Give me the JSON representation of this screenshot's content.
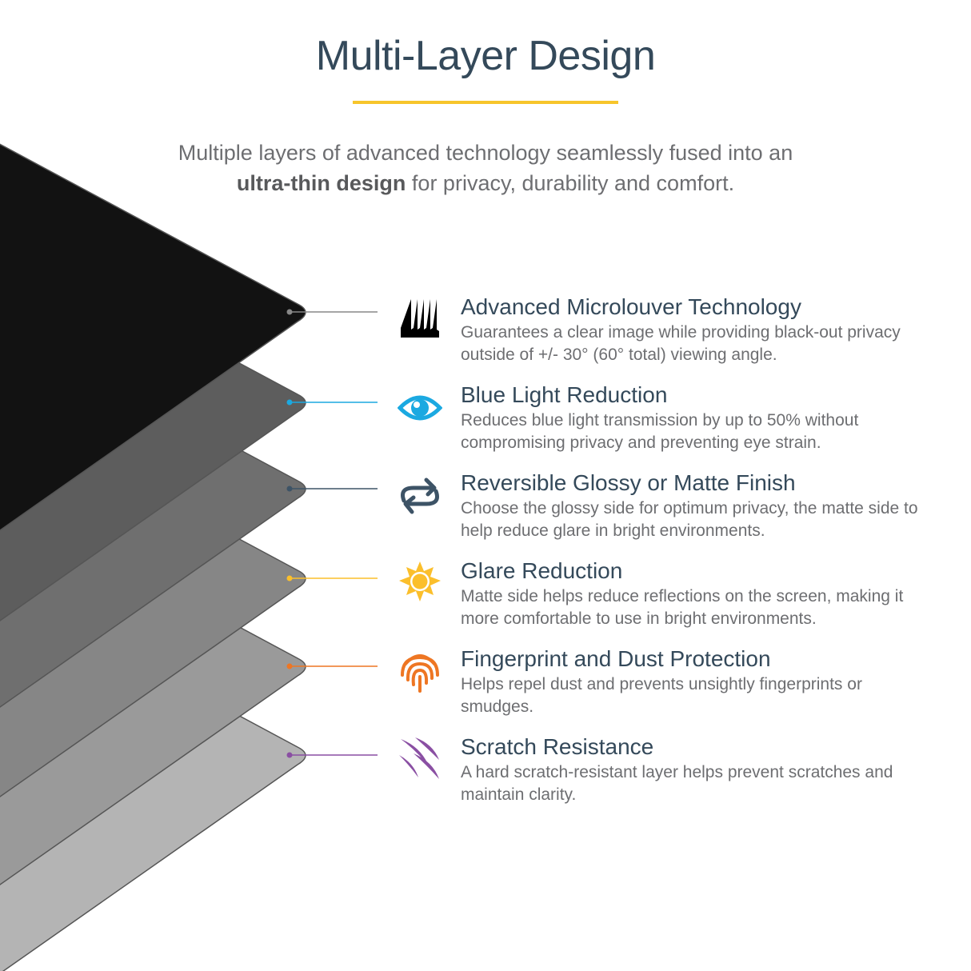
{
  "header": {
    "title": "Multi-Layer Design",
    "subtitle_line1": "Multiple layers of advanced technology seamlessly fused into an",
    "subtitle_bold": "ultra-thin design",
    "subtitle_rest": " for privacy, durability and comfort.",
    "accent_color": "#f7c52b"
  },
  "features": [
    {
      "title": "Advanced Microlouver Technology",
      "desc": "Guarantees a clear image while providing black-out privacy outside of +/- 30° (60° total) viewing angle.",
      "icon": "microlouver-icon",
      "color": "#000000"
    },
    {
      "title": "Blue Light Reduction",
      "desc": "Reduces blue light transmission by up to 50% without compromising privacy and preventing eye strain.",
      "icon": "eye-icon",
      "color": "#1ba9e1"
    },
    {
      "title": "Reversible Glossy or Matte Finish",
      "desc": "Choose the glossy side for optimum privacy, the matte side to help reduce glare in bright environments.",
      "icon": "reverse-arrows-icon",
      "color": "#3d5366"
    },
    {
      "title": "Glare Reduction",
      "desc": "Matte side helps reduce reflections on the screen, making it more comfortable to use in bright environments.",
      "icon": "sun-icon",
      "color": "#fbbf2c"
    },
    {
      "title": "Fingerprint and Dust Protection",
      "desc": "Helps repel dust and prevents unsightly fingerprints or smudges.",
      "icon": "fingerprint-icon",
      "color": "#ee7623"
    },
    {
      "title": "Scratch Resistance",
      "desc": "A hard scratch-resistant layer helps prevent scratches and maintain clarity.",
      "icon": "scratch-icon",
      "color": "#8a4fa3"
    }
  ]
}
